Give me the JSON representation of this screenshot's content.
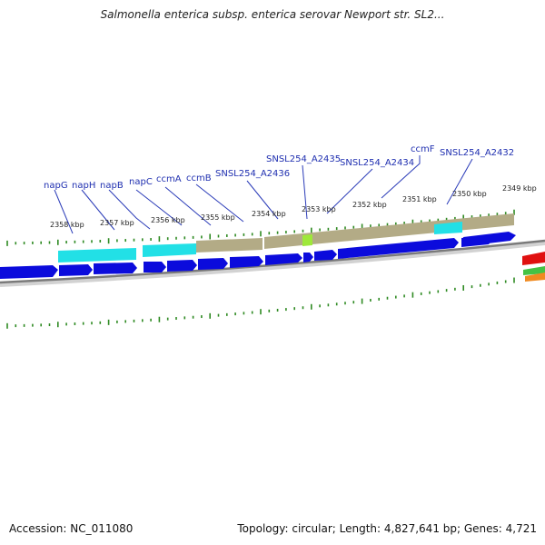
{
  "title": "Salmonella enterica subsp. enterica serovar Newport str. SL2...",
  "footer": {
    "accession": "Accession: NC_011080",
    "summary": "Topology: circular; Length: 4,827,641 bp; Genes: 4,721"
  },
  "gene_labels": [
    "napG",
    "napH",
    "napB",
    "napC",
    "ccmA",
    "ccmB",
    "SNSL254_A2436",
    "SNSL254_A2435",
    "SNSL254_A2434",
    "ccmF",
    "SNSL254_A2432"
  ],
  "tick_labels": [
    "2358 kbp",
    "2357 kbp",
    "2356 kbp",
    "2355 kbp",
    "2354 kbp",
    "2353 kbp",
    "2352 kbp",
    "2351 kbp",
    "2350 kbp",
    "2349 kbp"
  ],
  "colors": {
    "cds": "#0b0bdc",
    "cyan_feature": "#22e0e6",
    "khaki_feature": "#b3ab86",
    "green_feature": "#9ee83a",
    "tick": "#2e8a22",
    "backbone": "#8a8a8a",
    "label": "#1f2fb0",
    "red_feature": "#e01010",
    "orange_feature": "#f08a20"
  }
}
